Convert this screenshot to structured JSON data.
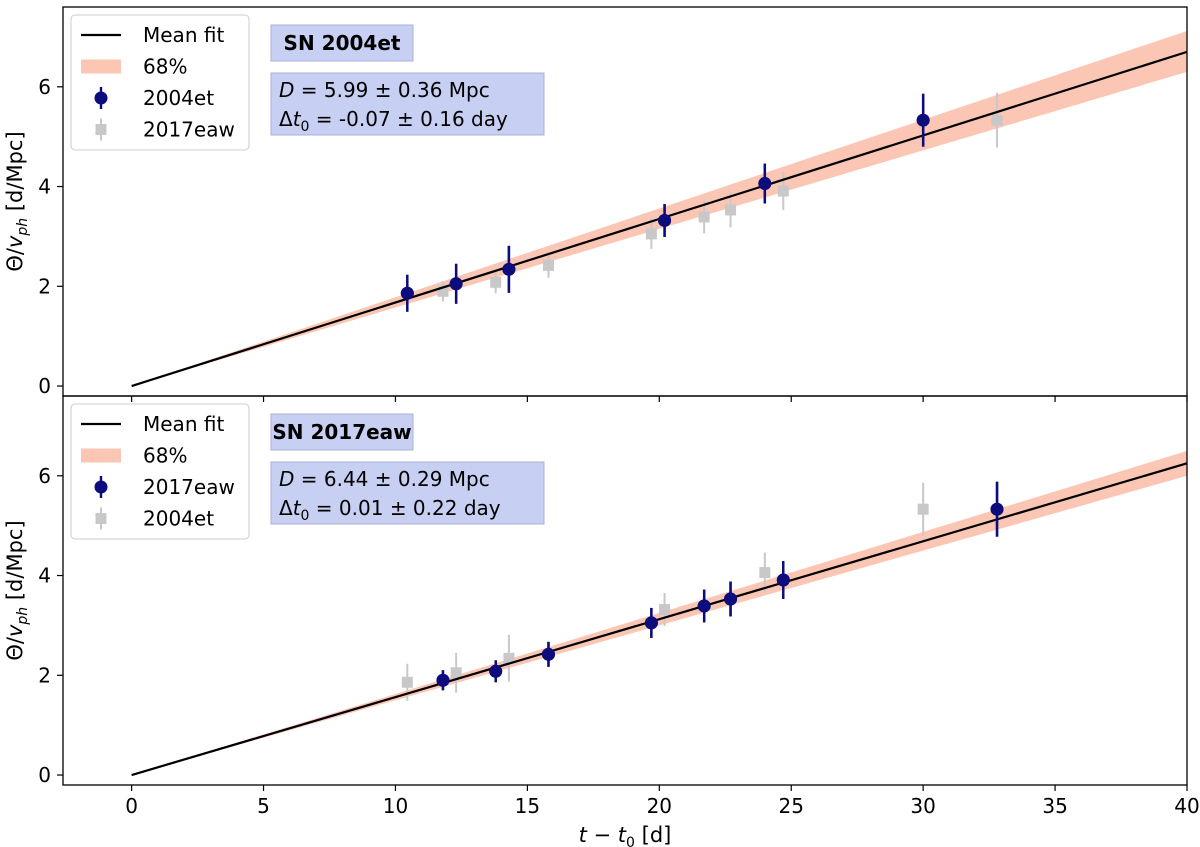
{
  "chart_data": [
    {
      "type": "scatter",
      "panel": "top",
      "title": "SN 2004et",
      "info_lines": [
        {
          "var": "D",
          "sub": "",
          "text": " =  5.99 ± 0.36 Mpc"
        },
        {
          "var": "Δt",
          "sub": "0",
          "text": " =  -0.07 ± 0.16 day"
        }
      ],
      "ylabel": "Θ/v",
      "ylabel_sub": "ph",
      "ylabel_unit": " [d/Mpc]",
      "xlim": [
        -2.6,
        40
      ],
      "ylim": [
        -0.2,
        7.6
      ],
      "x_ticks": [
        0,
        5,
        10,
        15,
        20,
        25,
        30,
        35,
        40
      ],
      "y_ticks": [
        0,
        2,
        4,
        6
      ],
      "legend": {
        "position": "upper-left",
        "entries": [
          {
            "kind": "line",
            "label": "Mean fit"
          },
          {
            "kind": "band",
            "label": "68%"
          },
          {
            "kind": "primary",
            "label": "2004et"
          },
          {
            "kind": "secondary",
            "label": "2017eaw"
          }
        ]
      },
      "fit": {
        "x": [
          0,
          40
        ],
        "mean": [
          0,
          6.7
        ],
        "low": [
          0,
          6.3
        ],
        "high": [
          0,
          7.12
        ]
      },
      "series": [
        {
          "name": "2004et",
          "role": "primary",
          "color": "#0c0c7c",
          "x": [
            10.45,
            12.3,
            14.3,
            20.2,
            24.0,
            30.0
          ],
          "y": [
            1.86,
            2.05,
            2.34,
            3.32,
            4.06,
            5.33
          ],
          "yerr": [
            0.37,
            0.4,
            0.47,
            0.33,
            0.4,
            0.53
          ]
        },
        {
          "name": "2017eaw",
          "role": "secondary",
          "color": "#c8c8c8",
          "x": [
            11.8,
            13.8,
            15.8,
            19.7,
            21.7,
            22.7,
            24.7,
            32.8
          ],
          "y": [
            1.9,
            2.08,
            2.42,
            3.05,
            3.39,
            3.53,
            3.91,
            5.33
          ],
          "yerr": [
            0.2,
            0.22,
            0.25,
            0.3,
            0.33,
            0.35,
            0.38,
            0.55
          ]
        }
      ]
    },
    {
      "type": "scatter",
      "panel": "bottom",
      "title": "SN 2017eaw",
      "info_lines": [
        {
          "var": "D",
          "sub": "",
          "text": " =  6.44 ± 0.29 Mpc"
        },
        {
          "var": "Δt",
          "sub": "0",
          "text": " =  0.01 ± 0.22 day"
        }
      ],
      "ylabel": "Θ/v",
      "ylabel_sub": "ph",
      "ylabel_unit": " [d/Mpc]",
      "xlabel": "t − t",
      "xlabel_sub": "0",
      "xlabel_unit": " [d]",
      "xlim": [
        -2.6,
        40
      ],
      "ylim": [
        -0.2,
        7.6
      ],
      "x_ticks": [
        0,
        5,
        10,
        15,
        20,
        25,
        30,
        35,
        40
      ],
      "y_ticks": [
        0,
        2,
        4,
        6
      ],
      "legend": {
        "position": "upper-left",
        "entries": [
          {
            "kind": "line",
            "label": "Mean fit"
          },
          {
            "kind": "band",
            "label": "68%"
          },
          {
            "kind": "primary",
            "label": "2017eaw"
          },
          {
            "kind": "secondary",
            "label": "2004et"
          }
        ]
      },
      "fit": {
        "x": [
          0,
          40
        ],
        "mean": [
          0,
          6.25
        ],
        "low": [
          0,
          6.0
        ],
        "high": [
          0,
          6.5
        ]
      },
      "series": [
        {
          "name": "2017eaw",
          "role": "primary",
          "color": "#0c0c7c",
          "x": [
            11.8,
            13.8,
            15.8,
            19.7,
            21.7,
            22.7,
            24.7,
            32.8
          ],
          "y": [
            1.9,
            2.08,
            2.42,
            3.05,
            3.39,
            3.53,
            3.91,
            5.33
          ],
          "yerr": [
            0.2,
            0.22,
            0.25,
            0.3,
            0.33,
            0.35,
            0.38,
            0.55
          ]
        },
        {
          "name": "2004et",
          "role": "secondary",
          "color": "#c8c8c8",
          "x": [
            10.45,
            12.3,
            14.3,
            20.2,
            24.0,
            30.0
          ],
          "y": [
            1.86,
            2.05,
            2.34,
            3.32,
            4.06,
            5.33
          ],
          "yerr": [
            0.37,
            0.4,
            0.47,
            0.33,
            0.4,
            0.53
          ]
        }
      ]
    }
  ],
  "colors": {
    "primary": "#0c0c7c",
    "secondary": "#c8c8c8",
    "band": "#fbc6b4",
    "fit": "#000000",
    "title_box": "#c7cff2",
    "info_box": "#c7cff2"
  }
}
